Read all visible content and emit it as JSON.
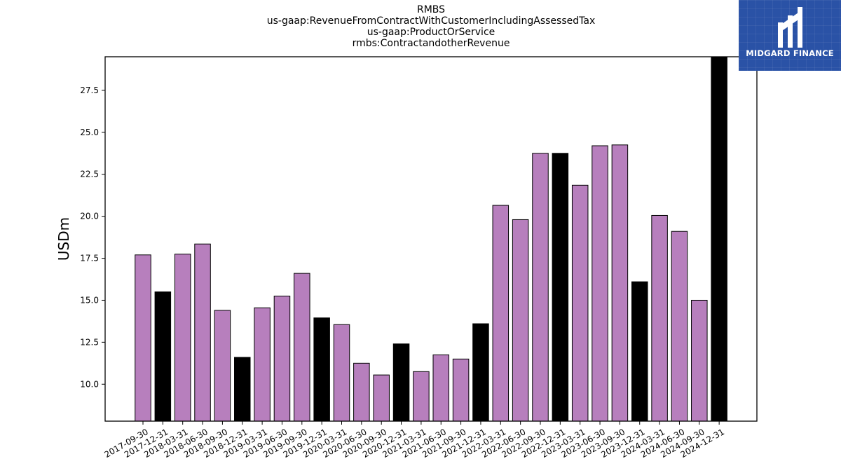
{
  "titles": {
    "line1": "RMBS",
    "line2": "us-gaap:RevenueFromContractWithCustomerIncludingAssessedTax",
    "line3": "us-gaap:ProductOrService",
    "line4": "rmbs:ContractandotherRevenue"
  },
  "logo": {
    "text": "MIDGARD FINANCE",
    "color": "#2a52a6"
  },
  "chart_data": {
    "type": "bar",
    "ylabel": "USDm",
    "xlabel": "",
    "ylim": [
      7.8,
      29.5
    ],
    "yticks": [
      10.0,
      12.5,
      15.0,
      17.5,
      20.0,
      22.5,
      25.0,
      27.5
    ],
    "grid": false,
    "colors": {
      "quarter": "#b77fbd",
      "year_end": "#000000",
      "edge": "#000000"
    },
    "categories": [
      "2017-09-30",
      "2017-12-31",
      "2018-03-31",
      "2018-06-30",
      "2018-09-30",
      "2018-12-31",
      "2019-03-31",
      "2019-06-30",
      "2019-09-30",
      "2019-12-31",
      "2020-03-31",
      "2020-06-30",
      "2020-09-30",
      "2020-12-31",
      "2021-03-31",
      "2021-06-30",
      "2021-09-30",
      "2021-12-31",
      "2022-03-31",
      "2022-06-30",
      "2022-09-30",
      "2022-12-31",
      "2023-03-31",
      "2023-06-30",
      "2023-09-30",
      "2023-12-31",
      "2024-03-31",
      "2024-06-30",
      "2024-09-30",
      "2024-12-31"
    ],
    "values": [
      17.7,
      15.5,
      17.75,
      18.35,
      14.4,
      11.6,
      14.55,
      15.25,
      16.6,
      13.95,
      13.55,
      11.25,
      10.55,
      12.4,
      10.75,
      11.75,
      11.5,
      13.6,
      20.65,
      19.8,
      23.75,
      23.75,
      21.85,
      24.2,
      24.25,
      16.1,
      20.05,
      19.1,
      15.0,
      29.5
    ]
  }
}
